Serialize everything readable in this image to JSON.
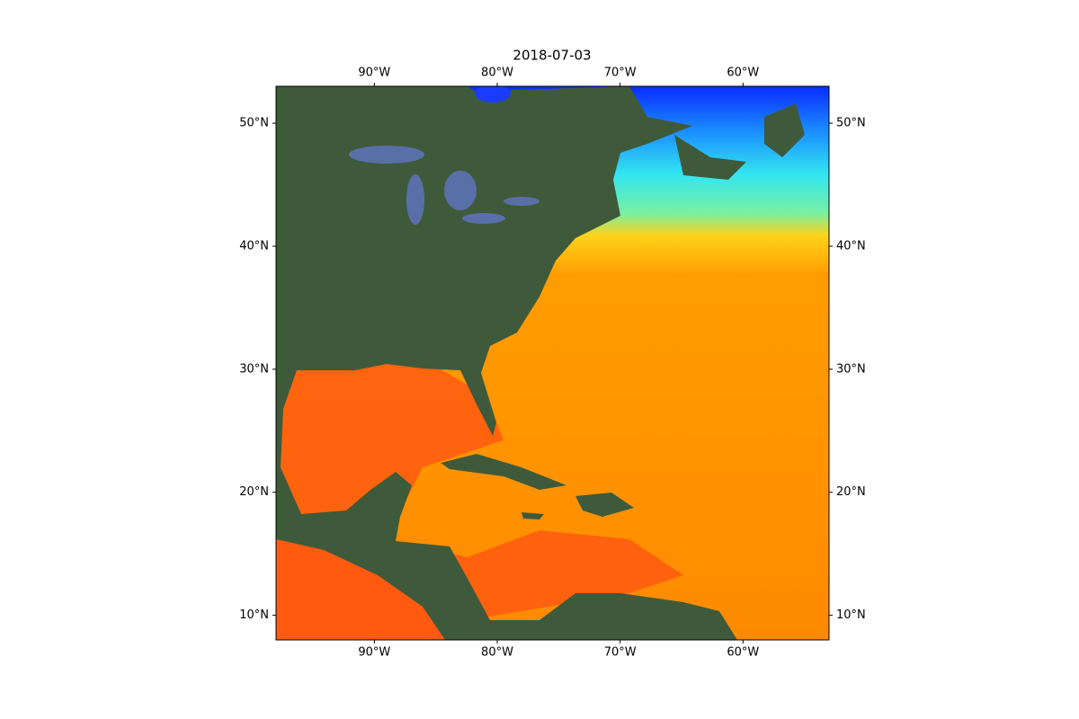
{
  "chart_data": {
    "type": "map",
    "title": "2018-07-03",
    "xlim": [
      -98,
      -53
    ],
    "ylim": [
      8,
      53
    ],
    "xticks": [
      {
        "value": -90,
        "label": "90°W"
      },
      {
        "value": -80,
        "label": "80°W"
      },
      {
        "value": -70,
        "label": "70°W"
      },
      {
        "value": -60,
        "label": "60°W"
      }
    ],
    "yticks": [
      {
        "value": 10,
        "label": "10°N"
      },
      {
        "value": 20,
        "label": "20°N"
      },
      {
        "value": 30,
        "label": "30°N"
      },
      {
        "value": 40,
        "label": "40°N"
      },
      {
        "value": 50,
        "label": "50°N"
      }
    ]
  }
}
